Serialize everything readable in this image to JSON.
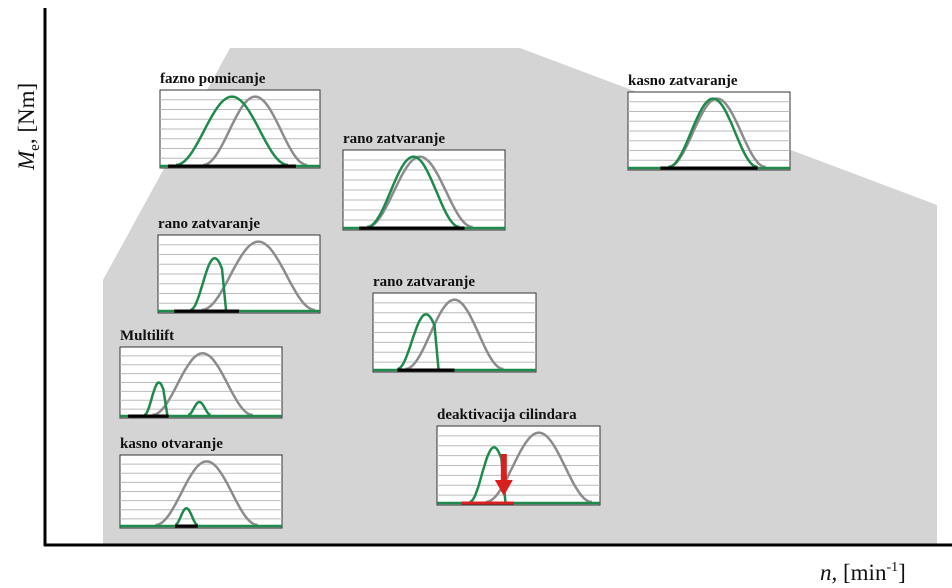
{
  "y_axis": {
    "symbol": "M",
    "subscript": "e",
    "unit": ", [Nm]"
  },
  "x_axis": {
    "symbol": "n,",
    "unit": "[min",
    "superscript": "-1",
    "close": "]"
  },
  "panels": [
    {
      "label": "fazno pomicanje"
    },
    {
      "label": "rano zatvaranje"
    },
    {
      "label": "kasno zatvaranje"
    },
    {
      "label": "rano zatvaranje"
    },
    {
      "label": "rano zatvaranje"
    },
    {
      "label": "Multilift"
    },
    {
      "label": "kasno otvaranje"
    },
    {
      "label": "deaktivacija cilindara"
    }
  ]
}
